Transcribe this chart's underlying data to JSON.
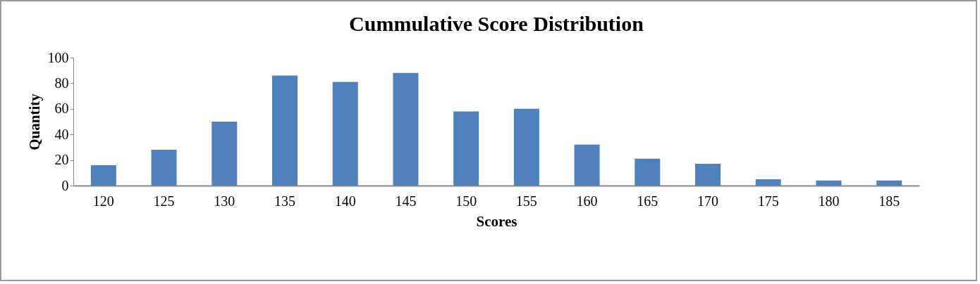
{
  "chart_data": {
    "type": "bar",
    "title": "Cummulative Score Distribution",
    "xlabel": "Scores",
    "ylabel": "Quantity",
    "categories": [
      "120",
      "125",
      "130",
      "135",
      "140",
      "145",
      "150",
      "155",
      "160",
      "165",
      "170",
      "175",
      "180",
      "185"
    ],
    "values": [
      16,
      28,
      50,
      86,
      81,
      88,
      58,
      60,
      32,
      21,
      17,
      5,
      4,
      4
    ],
    "color": "#4f81bd",
    "ylim": [
      0,
      100
    ],
    "yticks": [
      0,
      20,
      40,
      60,
      80,
      100
    ],
    "grid": false,
    "legend": false
  }
}
